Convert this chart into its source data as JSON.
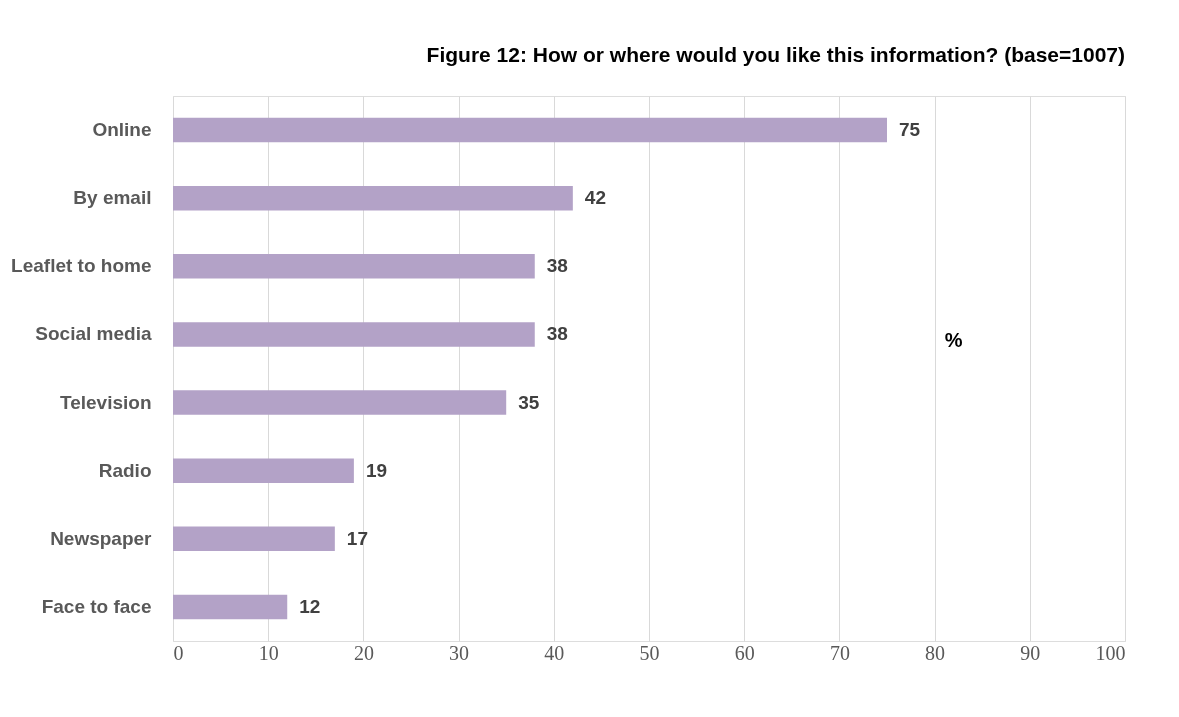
{
  "chart_data": {
    "type": "bar",
    "orientation": "horizontal",
    "title": "Figure 12:  How or where would you like this information? (base=1007)",
    "categories": [
      "Online",
      "By email",
      "Leaflet to home",
      "Social media",
      "Television",
      "Radio",
      "Newspaper",
      "Face to face"
    ],
    "values": [
      75,
      42,
      38,
      38,
      35,
      19,
      17,
      12
    ],
    "color": "#b3a2c7",
    "xlim": [
      0,
      100
    ],
    "xticks": [
      0,
      10,
      20,
      30,
      40,
      50,
      60,
      70,
      80,
      90,
      100
    ],
    "grid": "x",
    "data_labels": true,
    "annotations": [
      "%"
    ]
  }
}
